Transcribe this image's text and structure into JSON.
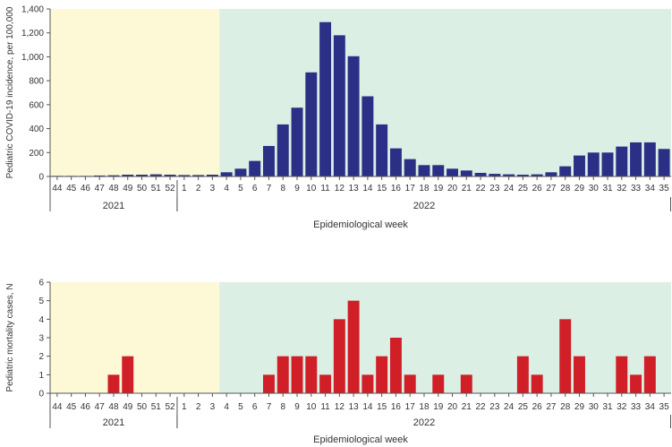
{
  "chart_data": [
    {
      "type": "bar",
      "ylabel": "Pediatric COVID-19 incidence, per 100,000",
      "xlabel": "Epidemiological week",
      "ylim": [
        0,
        1400
      ],
      "ytick_labels": [
        "0",
        "200",
        "400",
        "600",
        "800",
        "1,000",
        "1,200",
        "1,400"
      ],
      "categories": [
        "44",
        "45",
        "46",
        "47",
        "48",
        "49",
        "50",
        "51",
        "52",
        "1",
        "2",
        "3",
        "4",
        "5",
        "6",
        "7",
        "8",
        "9",
        "10",
        "11",
        "12",
        "13",
        "14",
        "15",
        "16",
        "17",
        "18",
        "19",
        "20",
        "21",
        "22",
        "23",
        "24",
        "25",
        "26",
        "27",
        "28",
        "29",
        "30",
        "31",
        "32",
        "33",
        "34",
        "35"
      ],
      "years": [
        {
          "label": "2021",
          "weeks": 9
        },
        {
          "label": "2022",
          "weeks": 35
        }
      ],
      "shading": [
        {
          "from_week_index": 0,
          "to_week_index": 12,
          "color": "#fdf9d7"
        },
        {
          "from_week_index": 12,
          "to_week_index": 44,
          "color": "#dcefe4"
        }
      ],
      "bar_color": "#2b3086",
      "grid": false,
      "values": [
        5,
        5,
        5,
        8,
        10,
        15,
        15,
        18,
        15,
        12,
        12,
        15,
        35,
        65,
        130,
        255,
        435,
        575,
        870,
        1290,
        1180,
        1005,
        670,
        435,
        235,
        145,
        95,
        95,
        65,
        50,
        30,
        22,
        18,
        15,
        18,
        35,
        85,
        175,
        200,
        200,
        250,
        285,
        285,
        230
      ]
    },
    {
      "type": "bar",
      "ylabel": "Pediatric mortality cases, N",
      "xlabel": "Epidemiological week",
      "ylim": [
        0,
        6
      ],
      "ytick_labels": [
        "0",
        "1",
        "2",
        "3",
        "4",
        "5",
        "6"
      ],
      "categories": [
        "44",
        "45",
        "46",
        "47",
        "48",
        "49",
        "50",
        "51",
        "52",
        "1",
        "2",
        "3",
        "4",
        "5",
        "6",
        "7",
        "8",
        "9",
        "10",
        "11",
        "12",
        "13",
        "14",
        "15",
        "16",
        "17",
        "18",
        "19",
        "20",
        "21",
        "22",
        "23",
        "24",
        "25",
        "26",
        "27",
        "28",
        "29",
        "30",
        "31",
        "32",
        "33",
        "34",
        "35"
      ],
      "years": [
        {
          "label": "2021",
          "weeks": 9
        },
        {
          "label": "2022",
          "weeks": 35
        }
      ],
      "shading": [
        {
          "from_week_index": 0,
          "to_week_index": 12,
          "color": "#fdf9d7"
        },
        {
          "from_week_index": 12,
          "to_week_index": 44,
          "color": "#dcefe4"
        }
      ],
      "bar_color": "#d01f27",
      "grid": false,
      "values": [
        0,
        0,
        0,
        0,
        1,
        2,
        0,
        0,
        0,
        0,
        0,
        0,
        0,
        0,
        0,
        1,
        2,
        2,
        2,
        1,
        4,
        5,
        1,
        2,
        3,
        1,
        0,
        1,
        0,
        1,
        0,
        0,
        0,
        2,
        1,
        0,
        4,
        2,
        0,
        0,
        2,
        1,
        2,
        0
      ]
    }
  ]
}
